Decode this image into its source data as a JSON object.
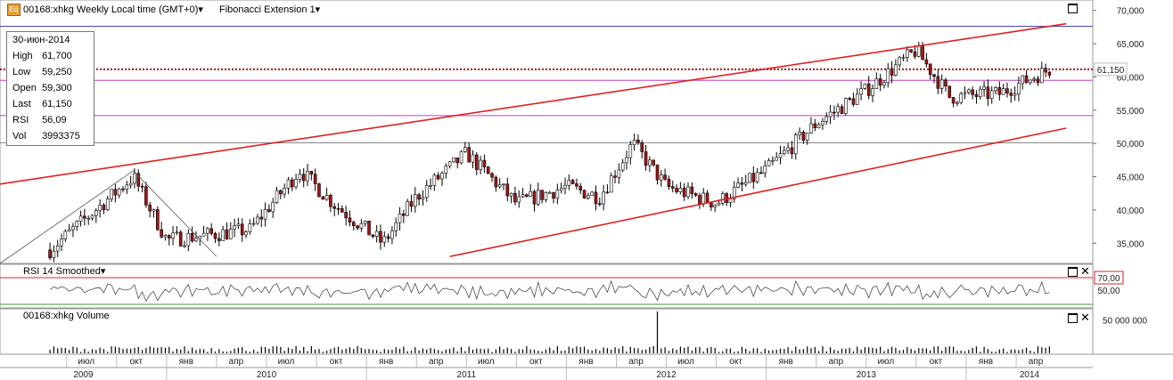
{
  "header": {
    "icon_text": "Eq",
    "symbol_title": "00168:xhkg Weekly Local time (GMT+0)",
    "study_title": "Fibonacci Extension 1"
  },
  "info_box": {
    "date": "30-июн-2014",
    "rows": [
      {
        "label": "High",
        "value": "61,700"
      },
      {
        "label": "Low",
        "value": "59,250"
      },
      {
        "label": "Open",
        "value": "59,300"
      },
      {
        "label": "Last",
        "value": "61,150"
      },
      {
        "label": "RSI",
        "value": "56,09"
      },
      {
        "label": "Vol",
        "value": "3993375"
      }
    ]
  },
  "rsi_panel": {
    "title": "RSI 14 Smoothed"
  },
  "volume_panel": {
    "title": "00168:xhkg Volume"
  },
  "colors": {
    "up": "#ffffff",
    "down": "#a31515",
    "trend": "#e02020",
    "fib_blue": "#3a3aa0",
    "fib_magenta": "#c040c0",
    "fib_gray": "#888888",
    "fib_green": "#3a9a3a"
  },
  "chart_data": [
    {
      "type": "candlestick",
      "title": "00168:xhkg Weekly Local time (GMT+0)",
      "y_axis_ticks": [
        "35,000",
        "40,000",
        "45,000",
        "50,000",
        "55,000",
        "60,000",
        "65,000",
        "70,000"
      ],
      "ylim": [
        32500,
        70500
      ],
      "last_price_label": "61,150",
      "price_keypoints": [
        {
          "date": "2009-06",
          "close": 34000
        },
        {
          "date": "2009-11",
          "close": 45000
        },
        {
          "date": "2010-01",
          "close": 35500
        },
        {
          "date": "2010-06",
          "close": 37000
        },
        {
          "date": "2010-09",
          "close": 46000
        },
        {
          "date": "2010-11",
          "close": 41000
        },
        {
          "date": "2011-02",
          "close": 35000
        },
        {
          "date": "2011-04",
          "close": 42000
        },
        {
          "date": "2011-07",
          "close": 48500
        },
        {
          "date": "2011-10",
          "close": 41000
        },
        {
          "date": "2012-01",
          "close": 43500
        },
        {
          "date": "2012-03",
          "close": 42000
        },
        {
          "date": "2012-05",
          "close": 50000
        },
        {
          "date": "2012-07",
          "close": 43500
        },
        {
          "date": "2012-10",
          "close": 41000
        },
        {
          "date": "2013-01",
          "close": 46000
        },
        {
          "date": "2013-04",
          "close": 53000
        },
        {
          "date": "2013-07",
          "close": 58000
        },
        {
          "date": "2013-10",
          "close": 64000
        },
        {
          "date": "2013-12",
          "close": 57000
        },
        {
          "date": "2014-03",
          "close": 57500
        },
        {
          "date": "2014-06",
          "close": 61150
        }
      ],
      "levels": [
        {
          "name": "fib-blue",
          "value": 67600
        },
        {
          "name": "last-price",
          "value": 61150
        },
        {
          "name": "fib-magenta-upper",
          "value": 59500
        },
        {
          "name": "fib-magenta-lower",
          "value": 54200
        },
        {
          "name": "fib-gray",
          "value": 50100
        }
      ],
      "trendlines": [
        {
          "name": "upper-channel",
          "start": {
            "date": "2009-03",
            "value": 43900
          },
          "end": {
            "date": "2014-07",
            "value": 68000
          }
        },
        {
          "name": "lower-channel",
          "start": {
            "date": "2011-06",
            "value": 33000
          },
          "end": {
            "date": "2014-07",
            "value": 52300
          }
        }
      ]
    },
    {
      "type": "line",
      "title": "RSI 14 Smoothed",
      "y_axis_ticks": [
        "50,00",
        "70,00"
      ],
      "levels": [
        70,
        30
      ],
      "last_value": 56.09
    },
    {
      "type": "bar",
      "title": "00168:xhkg Volume",
      "y_axis_ticks": [
        "50 000 000"
      ],
      "last_value": 3993375,
      "max_value": 63000000
    }
  ],
  "time_axis": {
    "months": [
      "июл",
      "окт",
      "янв",
      "апр",
      "июл",
      "окт",
      "янв",
      "апр",
      "июл",
      "окт",
      "янв",
      "апр",
      "июл",
      "окт",
      "янв",
      "апр",
      "июл",
      "окт",
      "янв",
      "апр"
    ],
    "years": [
      "2009",
      "2010",
      "2011",
      "2012",
      "2013",
      "2014"
    ]
  }
}
